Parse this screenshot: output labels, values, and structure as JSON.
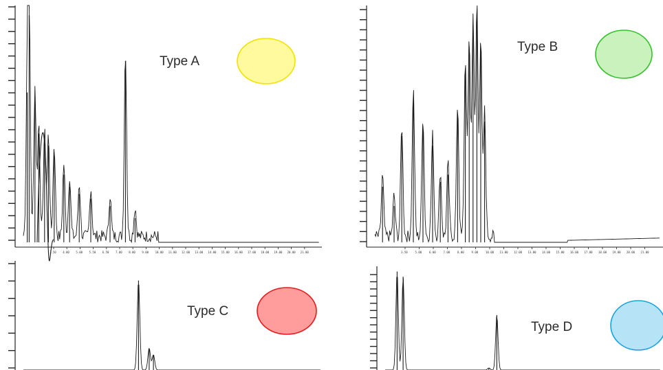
{
  "colors": {
    "trace": "#1a1a1a",
    "axis": "#222222",
    "type_a": {
      "fill": "#fffa9e",
      "stroke": "#f2e200"
    },
    "type_b": {
      "fill": "#c9f2bd",
      "stroke": "#35c12b"
    },
    "type_c": {
      "fill": "#ff9c9c",
      "stroke": "#e31c1c"
    },
    "type_d": {
      "fill": "#b6e4f6",
      "stroke": "#1aa3dd"
    }
  },
  "chart_data": [
    {
      "type": "line",
      "label": "Type A",
      "marker_color": "yellow",
      "x_tick_labels": [
        "3.50",
        "4.00",
        "5.00",
        "5.50",
        "6.50",
        "7.00",
        "8.00",
        "9.00",
        "10.00",
        "11.00",
        "12.00",
        "13.00",
        "14.00",
        "15.00",
        "16.00",
        "17.00",
        "18.00",
        "19.00",
        "20.00",
        "21.00"
      ],
      "y_ticks_count": 20,
      "peaks": [
        {
          "x": 0.2,
          "y": 0.64
        },
        {
          "x": 0.3,
          "y": 0.96
        },
        {
          "x": 0.6,
          "y": 0.62
        },
        {
          "x": 0.8,
          "y": 0.47
        },
        {
          "x": 1.1,
          "y": 0.43
        },
        {
          "x": 1.3,
          "y": 0.42
        },
        {
          "x": 1.6,
          "y": 0.38
        },
        {
          "x": 2.1,
          "y": 0.3
        },
        {
          "x": 2.4,
          "y": 0.25
        },
        {
          "x": 2.9,
          "y": 0.22
        },
        {
          "x": 3.5,
          "y": 0.2
        },
        {
          "x": 4.5,
          "y": 0.17
        },
        {
          "x": 5.3,
          "y": 0.77
        },
        {
          "x": 5.8,
          "y": 0.12
        }
      ],
      "baseline": 0.02
    },
    {
      "type": "line",
      "label": "Type B",
      "marker_color": "green",
      "x_tick_labels": [
        "3.50",
        "5.00",
        "6.00",
        "7.00",
        "8.00",
        "9.00",
        "10.00",
        "11.00",
        "12.00",
        "13.00",
        "14.00",
        "15.00",
        "16.00",
        "17.00",
        "18.00",
        "19.00",
        "20.00",
        "21.00"
      ],
      "y_ticks_count": 24,
      "peaks": [
        {
          "x": 0.4,
          "y": 0.25
        },
        {
          "x": 1.0,
          "y": 0.17
        },
        {
          "x": 1.4,
          "y": 0.46
        },
        {
          "x": 2.0,
          "y": 0.61
        },
        {
          "x": 2.5,
          "y": 0.5
        },
        {
          "x": 3.0,
          "y": 0.42
        },
        {
          "x": 3.4,
          "y": 0.27
        },
        {
          "x": 3.8,
          "y": 0.3
        },
        {
          "x": 4.3,
          "y": 0.55
        },
        {
          "x": 4.7,
          "y": 0.74
        },
        {
          "x": 4.9,
          "y": 0.83
        },
        {
          "x": 5.1,
          "y": 0.92
        },
        {
          "x": 5.3,
          "y": 0.97
        },
        {
          "x": 5.5,
          "y": 0.82
        },
        {
          "x": 5.7,
          "y": 0.52
        }
      ],
      "baseline": 0.02
    },
    {
      "type": "line",
      "label": "Type C",
      "marker_color": "red",
      "y_ticks_count": 7,
      "peaks": [
        {
          "x": 5.4,
          "y": 0.82
        },
        {
          "x": 5.9,
          "y": 0.2
        },
        {
          "x": 6.1,
          "y": 0.14
        }
      ]
    },
    {
      "type": "line",
      "label": "Type D",
      "marker_color": "blue",
      "y_ticks_count": 14,
      "peaks": [
        {
          "x": 0.6,
          "y": 0.95
        },
        {
          "x": 0.9,
          "y": 0.9
        },
        {
          "x": 5.6,
          "y": 0.53
        },
        {
          "x": 5.2,
          "y": 0.02
        }
      ]
    }
  ]
}
